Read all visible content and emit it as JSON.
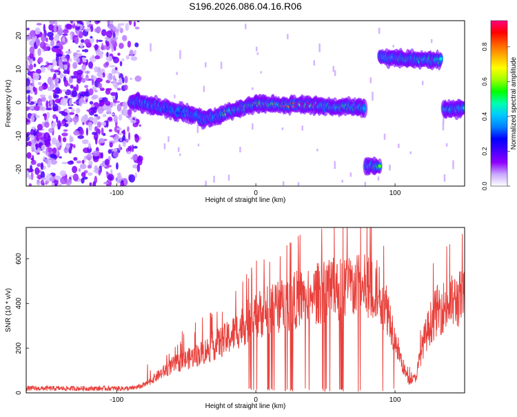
{
  "chart_data": [
    {
      "type": "heatmap",
      "title": "S196.2026.086.04.16.R06",
      "xlabel": "Height of straight line (km)",
      "ylabel": "Frequency (Hz)",
      "xlim": [
        -165,
        150
      ],
      "ylim": [
        -25,
        24.5
      ],
      "xticks": [
        -100,
        0,
        100
      ],
      "yticks": [
        -20,
        -10,
        0,
        10,
        20
      ],
      "xtick_labels": [
        "-100",
        "0",
        "100"
      ],
      "ytick_labels": [
        "-20",
        "-10",
        "0",
        "10",
        "20"
      ],
      "colorbar": {
        "label": "Normalized spectral amplitude",
        "range": [
          0,
          0.95
        ],
        "ticks": [
          0.0,
          0.2,
          0.4,
          0.6,
          0.8
        ],
        "tick_labels": [
          "0.0",
          "0.2",
          "0.4",
          "0.6",
          "0.8"
        ],
        "colors": [
          "#ffffff",
          "#c9a9ff",
          "#8f00ff",
          "#4400ff",
          "#0000ff",
          "#0080ff",
          "#00c8ff",
          "#00ffb0",
          "#00ff00",
          "#a0ff00",
          "#ffff00",
          "#ffb000",
          "#ff6000",
          "#ff0000",
          "#ff0080"
        ]
      },
      "noise_region": {
        "x_range": [
          -165,
          -83
        ],
        "freq_range": [
          -25,
          24.5
        ]
      },
      "track_segments": [
        {
          "x_range": [
            -90,
            -40
          ],
          "freq_start": 0.5,
          "freq_end": -4,
          "amplitude": 0.38
        },
        {
          "x_range": [
            -40,
            -25
          ],
          "freq_start": -5,
          "freq_end": -4,
          "amplitude": 0.4
        },
        {
          "x_range": [
            -25,
            0
          ],
          "freq_start": -3.5,
          "freq_end": -0.5,
          "amplitude": 0.55
        },
        {
          "x_range": [
            0,
            20
          ],
          "freq_start": -0.5,
          "freq_end": -0.5,
          "amplitude": 0.65
        },
        {
          "x_range": [
            20,
            45
          ],
          "freq_start": -0.7,
          "freq_end": -0.7,
          "amplitude": 0.88
        },
        {
          "x_range": [
            45,
            78
          ],
          "freq_start": -1,
          "freq_end": -1.5,
          "amplitude": 0.5
        },
        {
          "x_range": [
            79,
            89
          ],
          "freq_start": -19,
          "freq_end": -19,
          "amplitude": 0.5
        },
        {
          "x_range": [
            89,
            133
          ],
          "freq_start": 13.5,
          "freq_end": 12.5,
          "amplitude": 0.48
        },
        {
          "x_range": [
            135,
            150
          ],
          "freq_start": -2,
          "freq_end": -2,
          "amplitude": 0.45
        }
      ]
    },
    {
      "type": "line",
      "xlabel": "Height of straight line (km)",
      "ylabel": "SNR (10 * v/v)",
      "xlim": [
        -165,
        150
      ],
      "ylim": [
        0,
        740
      ],
      "xticks": [
        -100,
        0,
        100
      ],
      "yticks": [
        0,
        200,
        400,
        600
      ],
      "xtick_labels": [
        "-100",
        "0",
        "100"
      ],
      "ytick_labels": [
        "0",
        "200",
        "400",
        "600"
      ],
      "series": [
        {
          "name": "SNR",
          "color": "#e8413c",
          "x": [
            -165,
            -150,
            -130,
            -110,
            -90,
            -82,
            -76,
            -70,
            -60,
            -50,
            -40,
            -30,
            -20,
            -10,
            0,
            10,
            20,
            30,
            40,
            50,
            60,
            70,
            80,
            88,
            95,
            100,
            105,
            110,
            115,
            120,
            125,
            130,
            140,
            150
          ],
          "y": [
            20,
            20,
            20,
            20,
            20,
            30,
            60,
            90,
            140,
            170,
            200,
            240,
            280,
            340,
            400,
            420,
            450,
            480,
            500,
            520,
            530,
            540,
            540,
            520,
            420,
            280,
            150,
            60,
            80,
            250,
            350,
            420,
            460,
            490
          ]
        }
      ],
      "grid": false
    }
  ]
}
